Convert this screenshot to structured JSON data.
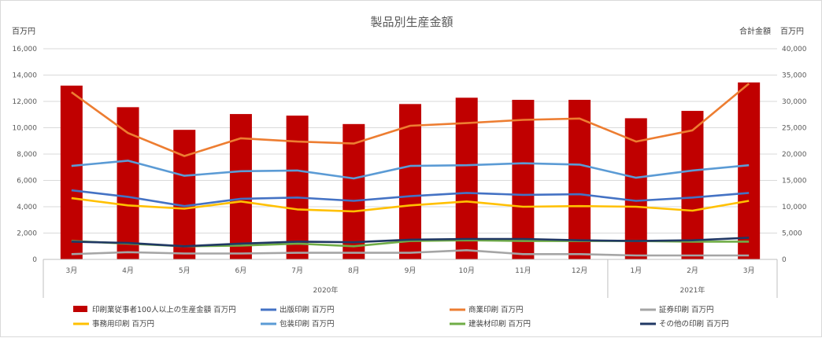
{
  "chart_data": {
    "type": "bar+line",
    "title": "製品別生産金額",
    "left_axis_unit": "百万円",
    "right_axis_label": "合計金額",
    "right_axis_unit": "百万円",
    "left_ylim": [
      0,
      16000
    ],
    "right_ylim": [
      0,
      40000
    ],
    "left_ticks": [
      "0",
      "2,000",
      "4,000",
      "6,000",
      "8,000",
      "10,000",
      "12,000",
      "14,000",
      "16,000"
    ],
    "right_ticks": [
      "0",
      "5,000",
      "10,000",
      "15,000",
      "20,000",
      "25,000",
      "30,000",
      "35,000",
      "40,000"
    ],
    "categories": [
      "3月",
      "4月",
      "5月",
      "6月",
      "7月",
      "8月",
      "9月",
      "10月",
      "11月",
      "12月",
      "1月",
      "2月",
      "3月"
    ],
    "year_groups": [
      {
        "label": "2020年",
        "start": 0,
        "end": 9
      },
      {
        "label": "2021年",
        "start": 10,
        "end": 12
      }
    ],
    "grid": true,
    "legend_position": "bottom",
    "bar_series": {
      "name": "印刷業従事者100人以上の生産金額 百万円",
      "axis": "right",
      "color": "#c00000",
      "values": [
        33000,
        28900,
        24600,
        27600,
        27300,
        25700,
        29500,
        30700,
        30300,
        30300,
        26800,
        28200,
        33600
      ]
    },
    "line_series": [
      {
        "name": "出版印刷 百万円",
        "color": "#4472c4",
        "values": [
          5250,
          4750,
          4050,
          4600,
          4700,
          4450,
          4800,
          5050,
          4900,
          4950,
          4450,
          4700,
          5050
        ]
      },
      {
        "name": "商業印刷 百万円",
        "color": "#ed7d31",
        "values": [
          12700,
          9600,
          7850,
          9200,
          8950,
          8800,
          10150,
          10350,
          10600,
          10700,
          8950,
          9800,
          13350
        ]
      },
      {
        "name": "証券印刷 百万円",
        "color": "#a5a5a5",
        "values": [
          400,
          550,
          450,
          450,
          500,
          500,
          500,
          700,
          400,
          400,
          300,
          300,
          300
        ]
      },
      {
        "name": "事務用印刷 百万円",
        "color": "#ffc000",
        "values": [
          4650,
          4100,
          3850,
          4400,
          3800,
          3650,
          4100,
          4400,
          4000,
          4050,
          4000,
          3700,
          4450
        ]
      },
      {
        "name": "包装印刷 百万円",
        "color": "#5b9bd5",
        "values": [
          7100,
          7500,
          6350,
          6700,
          6750,
          6150,
          7100,
          7150,
          7300,
          7200,
          6200,
          6750,
          7150
        ]
      },
      {
        "name": "建装材印刷 百万円",
        "color": "#70ad47",
        "values": [
          1400,
          1200,
          1000,
          1050,
          1200,
          1000,
          1400,
          1450,
          1400,
          1400,
          1400,
          1350,
          1350
        ]
      },
      {
        "name": "その他の印刷 百万円",
        "color": "#203864",
        "values": [
          1350,
          1250,
          1000,
          1200,
          1350,
          1300,
          1500,
          1550,
          1550,
          1450,
          1400,
          1450,
          1650
        ]
      }
    ],
    "legend_order": [
      "印刷業従事者100人以上の生産金額 百万円",
      "出版印刷 百万円",
      "商業印刷 百万円",
      "証券印刷 百万円",
      "事務用印刷 百万円",
      "包装印刷 百万円",
      "建装材印刷 百万円",
      "その他の印刷 百万円"
    ]
  }
}
